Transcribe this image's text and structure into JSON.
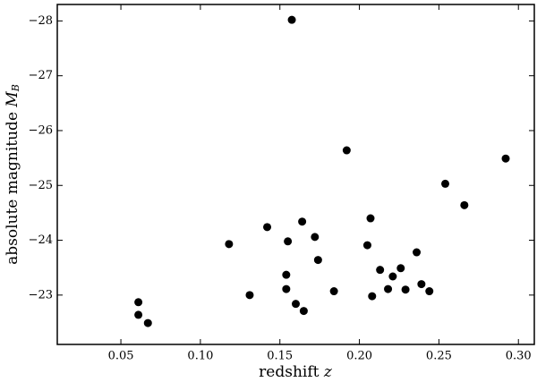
{
  "chart_data": {
    "type": "scatter",
    "x_label": {
      "text": "redshift",
      "symbol": "z"
    },
    "y_label": {
      "text": "absolute magnitude",
      "symbol": "M",
      "subscript": "B"
    },
    "x": [
      0.1575,
      0.192,
      0.292,
      0.254,
      0.266,
      0.207,
      0.164,
      0.142,
      0.172,
      0.118,
      0.155,
      0.205,
      0.236,
      0.174,
      0.213,
      0.226,
      0.154,
      0.221,
      0.239,
      0.154,
      0.218,
      0.229,
      0.244,
      0.184,
      0.131,
      0.208,
      0.061,
      0.16,
      0.165,
      0.061,
      0.067
    ],
    "values": [
      -28.02,
      -25.64,
      -25.49,
      -25.03,
      -24.64,
      -24.4,
      -24.34,
      -24.24,
      -24.06,
      -23.93,
      -23.98,
      -23.91,
      -23.78,
      -23.64,
      -23.46,
      -23.49,
      -23.37,
      -23.34,
      -23.2,
      -23.11,
      -23.11,
      -23.1,
      -23.07,
      -23.07,
      -23.0,
      -22.98,
      -22.87,
      -22.84,
      -22.71,
      -22.64,
      -22.49
    ],
    "color": "#000000",
    "xlim": [
      0.01,
      0.31
    ],
    "ylim": [
      -22.1,
      -28.3
    ],
    "xticks": [
      0.05,
      {
        "value": 0.1,
        "label": "0.10"
      },
      0.15,
      {
        "value": 0.2,
        "label": "0.20"
      },
      0.25,
      {
        "value": 0.3,
        "label": "0.30"
      }
    ],
    "yticks": [
      {
        "value": -28,
        "label": "−28"
      },
      {
        "value": -27,
        "label": "−27"
      },
      {
        "value": -26,
        "label": "−26"
      },
      {
        "value": -25,
        "label": "−25"
      },
      {
        "value": -24,
        "label": "−24"
      },
      {
        "value": -23,
        "label": "−23"
      }
    ],
    "grid": false
  }
}
